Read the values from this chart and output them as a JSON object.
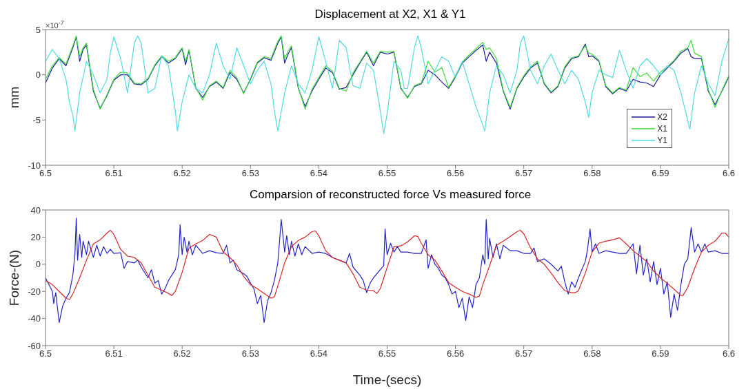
{
  "chart_data": [
    {
      "type": "line",
      "title": "Displacement at X2, X1 & Y1",
      "ylabel": "mm",
      "annotations": [
        "×10$^{-7}$"
      ],
      "xlim": [
        6.5,
        6.6
      ],
      "xticks": [
        6.5,
        6.51,
        6.52,
        6.53,
        6.54,
        6.55,
        6.56,
        6.57,
        6.58,
        6.59,
        6.6
      ],
      "ylim": [
        -10,
        5
      ],
      "yticks": [
        -10,
        -5,
        0,
        5
      ],
      "legend": "bottom right",
      "marker": "none",
      "line_style": "solid",
      "series": [
        {
          "name": "X2",
          "color": "#1c1c9c",
          "x": [
            6.5,
            6.501,
            6.502,
            6.503,
            6.504,
            6.5045,
            6.505,
            6.5055,
            6.506,
            6.507,
            6.508,
            6.509,
            6.51,
            6.511,
            6.512,
            6.513,
            6.514,
            6.515,
            6.516,
            6.517,
            6.518,
            6.519,
            6.52,
            6.5205,
            6.521,
            6.522,
            6.523,
            6.524,
            6.525,
            6.526,
            6.527,
            6.528,
            6.529,
            6.53,
            6.531,
            6.532,
            6.533,
            6.534,
            6.5345,
            6.535,
            6.5355,
            6.536,
            6.537,
            6.538,
            6.539,
            6.54,
            6.541,
            6.542,
            6.543,
            6.544,
            6.545,
            6.546,
            6.547,
            6.548,
            6.549,
            6.55,
            6.551,
            6.552,
            6.553,
            6.554,
            6.555,
            6.556,
            6.557,
            6.558,
            6.559,
            6.56,
            6.561,
            6.562,
            6.563,
            6.564,
            6.5645,
            6.565,
            6.566,
            6.567,
            6.568,
            6.569,
            6.57,
            6.571,
            6.572,
            6.573,
            6.574,
            6.575,
            6.576,
            6.577,
            6.578,
            6.579,
            6.5795,
            6.58,
            6.581,
            6.582,
            6.583,
            6.584,
            6.585,
            6.586,
            6.587,
            6.588,
            6.589,
            6.59,
            6.591,
            6.592,
            6.593,
            6.594,
            6.5945,
            6.595,
            6.596,
            6.597,
            6.598,
            6.599,
            6.6
          ],
          "values": [
            -0.9,
            0.75,
            1.8,
            1.0,
            3.0,
            4.2,
            1.5,
            2.8,
            3.3,
            -1.8,
            -3.7,
            -2.3,
            -0.6,
            0,
            0,
            -1.0,
            -1.1,
            -0.5,
            1.0,
            2.0,
            1.3,
            1.8,
            2.9,
            1.1,
            2.7,
            -1.5,
            -2.5,
            -1.3,
            -0.8,
            -1.5,
            0.25,
            -0.5,
            -2.0,
            -0.5,
            1.3,
            1.9,
            1.6,
            3.5,
            4.2,
            1.3,
            2.3,
            3.0,
            -1.5,
            -3.5,
            -1.8,
            -0.5,
            0.75,
            0.25,
            -1.6,
            -1.4,
            0,
            1.3,
            2.5,
            1.0,
            2.5,
            2.3,
            2.5,
            -1.5,
            -2.5,
            -1.3,
            -1.0,
            0.5,
            0,
            -0.8,
            -1.5,
            -0.25,
            1.3,
            2.0,
            2.7,
            3.3,
            1.5,
            2.5,
            1.3,
            -1.8,
            -3.8,
            -1.5,
            -0.25,
            0.75,
            1.3,
            -1.0,
            -2.0,
            -1.3,
            0.75,
            1.8,
            2.0,
            3.4,
            2.0,
            2.1,
            1.5,
            -1.3,
            -2.1,
            -1.5,
            -1.8,
            -0.5,
            -0.8,
            -0.9,
            -1.3,
            0,
            0.75,
            1.5,
            2.4,
            2.9,
            2.0,
            1.8,
            1.8,
            -1.8,
            -3.3,
            -1.8,
            -0.25
          ]
        },
        {
          "name": "X1",
          "color": "#3ddc3d",
          "x": [
            6.5,
            6.501,
            6.502,
            6.503,
            6.504,
            6.5045,
            6.505,
            6.5055,
            6.506,
            6.507,
            6.508,
            6.509,
            6.51,
            6.511,
            6.512,
            6.513,
            6.514,
            6.515,
            6.516,
            6.517,
            6.518,
            6.519,
            6.52,
            6.5205,
            6.521,
            6.522,
            6.523,
            6.524,
            6.525,
            6.526,
            6.527,
            6.528,
            6.529,
            6.53,
            6.531,
            6.532,
            6.533,
            6.534,
            6.5345,
            6.535,
            6.5355,
            6.536,
            6.537,
            6.538,
            6.539,
            6.54,
            6.541,
            6.542,
            6.543,
            6.544,
            6.545,
            6.546,
            6.547,
            6.548,
            6.549,
            6.55,
            6.551,
            6.552,
            6.553,
            6.554,
            6.555,
            6.556,
            6.557,
            6.558,
            6.559,
            6.56,
            6.561,
            6.562,
            6.563,
            6.564,
            6.5645,
            6.565,
            6.566,
            6.567,
            6.568,
            6.569,
            6.57,
            6.571,
            6.572,
            6.573,
            6.574,
            6.575,
            6.576,
            6.577,
            6.578,
            6.579,
            6.5795,
            6.58,
            6.581,
            6.582,
            6.583,
            6.584,
            6.585,
            6.586,
            6.587,
            6.588,
            6.589,
            6.59,
            6.591,
            6.592,
            6.593,
            6.594,
            6.5945,
            6.595,
            6.596,
            6.597,
            6.598,
            6.599,
            6.6
          ],
          "values": [
            -0.5,
            1.0,
            1.9,
            1.2,
            3.2,
            4.3,
            2.0,
            3.0,
            3.5,
            -1.6,
            -3.8,
            -2.2,
            -0.5,
            0.3,
            0.2,
            -0.9,
            -1.0,
            -0.4,
            1.1,
            2.1,
            1.5,
            1.9,
            3.0,
            1.5,
            2.8,
            -1.4,
            -2.8,
            -1.2,
            -0.7,
            -1.4,
            0.5,
            -0.3,
            -2.1,
            -0.4,
            1.4,
            2.0,
            1.8,
            3.7,
            4.3,
            1.8,
            2.6,
            3.2,
            -1.4,
            -3.8,
            -1.6,
            -0.3,
            1.0,
            0.4,
            -1.5,
            -1.8,
            0.2,
            1.4,
            2.6,
            1.3,
            2.6,
            2.5,
            2.6,
            -1.4,
            -2.6,
            -1.2,
            -0.9,
            1.5,
            0.3,
            0.8,
            -1.4,
            -0.1,
            1.4,
            2.2,
            2.9,
            3.6,
            2.8,
            3.0,
            1.8,
            -1.7,
            -3.6,
            -1.4,
            -0.1,
            0.9,
            1.5,
            -0.9,
            -1.9,
            -1.2,
            0.9,
            1.9,
            2.1,
            3.2,
            2.4,
            2.3,
            1.6,
            -1.2,
            -2.0,
            -1.4,
            -1.7,
            0.8,
            -0.2,
            0.2,
            -0.7,
            0.3,
            0.9,
            1.6,
            2.6,
            3.0,
            3.8,
            2.4,
            2.0,
            -1.6,
            -3.6,
            -1.7,
            -0.1
          ]
        },
        {
          "name": "Y1",
          "color": "#4fdbe3",
          "x": [
            6.5,
            6.501,
            6.502,
            6.503,
            6.5035,
            6.504,
            6.5043,
            6.505,
            6.506,
            6.507,
            6.508,
            6.509,
            6.5095,
            6.51,
            6.511,
            6.512,
            6.513,
            6.5135,
            6.514,
            6.515,
            6.516,
            6.517,
            6.518,
            6.519,
            6.5193,
            6.52,
            6.521,
            6.522,
            6.523,
            6.524,
            6.525,
            6.526,
            6.527,
            6.528,
            6.529,
            6.53,
            6.531,
            6.532,
            6.533,
            6.5335,
            6.534,
            6.535,
            6.536,
            6.537,
            6.538,
            6.539,
            6.54,
            6.541,
            6.542,
            6.543,
            6.544,
            6.545,
            6.546,
            6.547,
            6.548,
            6.549,
            6.5495,
            6.55,
            6.551,
            6.552,
            6.5525,
            6.553,
            6.554,
            6.5545,
            6.555,
            6.556,
            6.557,
            6.558,
            6.559,
            6.56,
            6.561,
            6.562,
            6.563,
            6.5643,
            6.565,
            6.566,
            6.567,
            6.568,
            6.569,
            6.5695,
            6.57,
            6.571,
            6.572,
            6.573,
            6.574,
            6.575,
            6.576,
            6.577,
            6.578,
            6.579,
            6.5795,
            6.58,
            6.581,
            6.582,
            6.583,
            6.584,
            6.585,
            6.586,
            6.587,
            6.588,
            6.589,
            6.59,
            6.591,
            6.592,
            6.593,
            6.5943,
            6.595,
            6.596,
            6.597,
            6.598,
            6.599,
            6.6
          ],
          "values": [
            1.5,
            2.8,
            1.8,
            -0.5,
            -3,
            -4.5,
            -6.2,
            -2,
            1.5,
            0,
            -2,
            -0.5,
            2.5,
            4.2,
            1.8,
            -2,
            3.5,
            4.3,
            3.5,
            -2,
            -1.5,
            2.1,
            1,
            -4,
            -6.2,
            -3,
            0,
            -1.5,
            -2,
            0,
            3.5,
            1,
            -0.5,
            3,
            1,
            -1,
            0.5,
            1.5,
            -1,
            -4,
            -6.2,
            -2,
            1,
            -1,
            -2,
            0.5,
            4.2,
            1.5,
            -1.5,
            3.8,
            3,
            -1.2,
            -1.5,
            1.3,
            0.5,
            -4,
            -6.5,
            -4.3,
            1.5,
            0.5,
            -1.5,
            -1.5,
            3,
            4.3,
            3,
            -1,
            0.5,
            2,
            1.5,
            -0.3,
            1.5,
            -1,
            -3.5,
            -6.2,
            -2,
            1,
            0,
            -2,
            0.5,
            3.5,
            4.3,
            0.5,
            -1,
            1,
            2.3,
            0.5,
            -1,
            0.5,
            -0.5,
            -3,
            -4.7,
            -2,
            0.5,
            0,
            -0.3,
            2.7,
            0.5,
            -1.5,
            1,
            1.8,
            1,
            0,
            1,
            0.5,
            -2,
            -6,
            -2,
            1,
            -1,
            -2.3,
            1.5,
            4
          ]
        }
      ]
    },
    {
      "type": "line",
      "title": "Comparsion of reconstructed force Vs measured force",
      "xlabel": "Time-(secs)",
      "ylabel": "Force-(N)",
      "xlim": [
        6.5,
        6.6
      ],
      "xticks": [
        6.5,
        6.51,
        6.52,
        6.53,
        6.54,
        6.55,
        6.56,
        6.57,
        6.58,
        6.59,
        6.6
      ],
      "ylim": [
        -60,
        40
      ],
      "yticks": [
        -60,
        -40,
        -20,
        0,
        20,
        40
      ],
      "marker": "none",
      "line_style": "solid",
      "series": [
        {
          "color": "#2323c8",
          "x": [
            6.5,
            6.501,
            6.5012,
            6.5015,
            6.502,
            6.5025,
            6.503,
            6.5035,
            6.504,
            6.5043,
            6.5045,
            6.5047,
            6.505,
            6.5053,
            6.5055,
            6.506,
            6.5063,
            6.507,
            6.5075,
            6.508,
            6.5085,
            6.509,
            6.5095,
            6.51,
            6.511,
            6.5115,
            6.512,
            6.513,
            6.5135,
            6.514,
            6.515,
            6.5155,
            6.516,
            6.5165,
            6.517,
            6.5175,
            6.518,
            6.519,
            6.5195,
            6.5197,
            6.52,
            6.5203,
            6.5207,
            6.521,
            6.5215,
            6.522,
            6.523,
            6.524,
            6.525,
            6.526,
            6.5265,
            6.527,
            6.5275,
            6.528,
            6.529,
            6.5295,
            6.53,
            6.5305,
            6.531,
            6.5315,
            6.532,
            6.5325,
            6.533,
            6.5335,
            6.534,
            6.5345,
            6.535,
            6.5353,
            6.5357,
            6.536,
            6.5365,
            6.537,
            6.5375,
            6.538,
            6.539,
            6.54,
            6.541,
            6.542,
            6.543,
            6.544,
            6.5445,
            6.545,
            6.546,
            6.5465,
            6.547,
            6.5475,
            6.548,
            6.549,
            6.5495,
            6.5497,
            6.55,
            6.5505,
            6.551,
            6.5515,
            6.552,
            6.553,
            6.554,
            6.555,
            6.5557,
            6.556,
            6.5565,
            6.557,
            6.5575,
            6.558,
            6.5585,
            6.559,
            6.5595,
            6.56,
            6.5605,
            6.561,
            6.5615,
            6.562,
            6.5625,
            6.563,
            6.5635,
            6.564,
            6.5643,
            6.5645,
            6.5648,
            6.565,
            6.5655,
            6.566,
            6.5665,
            6.567,
            6.568,
            6.569,
            6.57,
            6.571,
            6.5715,
            6.572,
            6.573,
            6.574,
            6.575,
            6.5755,
            6.576,
            6.5765,
            6.577,
            6.5775,
            6.578,
            6.579,
            6.5793,
            6.5797,
            6.58,
            6.5805,
            6.581,
            6.582,
            6.583,
            6.584,
            6.585,
            6.586,
            6.5865,
            6.587,
            6.5875,
            6.588,
            6.5885,
            6.589,
            6.5895,
            6.59,
            6.5905,
            6.591,
            6.5915,
            6.592,
            6.5925,
            6.593,
            6.5935,
            6.594,
            6.5945,
            6.595,
            6.5955,
            6.596,
            6.5965,
            6.597,
            6.598,
            6.599,
            6.6
          ],
          "values": [
            -10,
            -20,
            -29,
            -21,
            -43,
            -31,
            -25,
            -21,
            -8,
            7,
            34,
            3,
            22,
            5,
            17,
            7,
            17,
            5,
            14,
            6,
            13,
            8,
            11,
            8,
            8.5,
            -3,
            2,
            1,
            3,
            -2,
            -10,
            -4,
            -14,
            -12,
            -22,
            -18,
            -12,
            -4,
            7,
            29,
            7,
            20,
            9,
            17,
            7,
            14,
            8,
            10,
            8.5,
            8,
            14,
            1,
            3,
            -4,
            -7,
            -9,
            -14,
            -18,
            -29,
            -23,
            -43,
            -27,
            -21,
            -12,
            1,
            33,
            9,
            21,
            7,
            17,
            6,
            15,
            7,
            13,
            8,
            9,
            8,
            5,
            3,
            1,
            8,
            -2,
            -8,
            -12,
            -21,
            -14,
            -10,
            -4,
            -1,
            26,
            7,
            15.5,
            9,
            13,
            9,
            9,
            8,
            8,
            18,
            -3,
            7,
            0,
            -3,
            -8,
            -10,
            -15,
            -22,
            -20,
            -32,
            -25,
            -41.5,
            -24,
            -32,
            -15,
            -10,
            7,
            0,
            33,
            4,
            19,
            5,
            15,
            4,
            14,
            10,
            10,
            8,
            8,
            12,
            2,
            4,
            0,
            -5,
            -1.5,
            -13,
            -22,
            -13,
            -17,
            -10,
            2,
            10,
            26,
            9,
            15,
            8,
            10,
            9,
            8,
            8,
            15,
            -7,
            14,
            -8,
            4,
            -13,
            2,
            -15,
            -3,
            -22,
            -13,
            -39,
            -22,
            -34,
            -15,
            0,
            4,
            27,
            9,
            15,
            9,
            15,
            9,
            10,
            8,
            8
          ]
        },
        {
          "color": "#d42525",
          "x": [
            6.5,
            6.501,
            6.502,
            6.503,
            6.5035,
            6.504,
            6.505,
            6.506,
            6.507,
            6.508,
            6.509,
            6.5095,
            6.51,
            6.511,
            6.512,
            6.513,
            6.514,
            6.515,
            6.516,
            6.517,
            6.518,
            6.5185,
            6.519,
            6.52,
            6.521,
            6.522,
            6.523,
            6.524,
            6.525,
            6.526,
            6.527,
            6.528,
            6.529,
            6.53,
            6.531,
            6.532,
            6.533,
            6.5335,
            6.534,
            6.535,
            6.536,
            6.537,
            6.538,
            6.539,
            6.5395,
            6.54,
            6.541,
            6.542,
            6.543,
            6.544,
            6.545,
            6.546,
            6.547,
            6.548,
            6.5485,
            6.549,
            6.55,
            6.551,
            6.552,
            6.553,
            6.554,
            6.5545,
            6.555,
            6.556,
            6.557,
            6.558,
            6.559,
            6.56,
            6.561,
            6.562,
            6.563,
            6.5635,
            6.564,
            6.565,
            6.566,
            6.567,
            6.568,
            6.569,
            6.5695,
            6.57,
            6.571,
            6.572,
            6.573,
            6.574,
            6.575,
            6.576,
            6.577,
            6.5775,
            6.578,
            6.579,
            6.58,
            6.581,
            6.582,
            6.583,
            6.584,
            6.585,
            6.586,
            6.587,
            6.588,
            6.589,
            6.59,
            6.591,
            6.592,
            6.593,
            6.5933,
            6.594,
            6.595,
            6.596,
            6.597,
            6.598,
            6.599,
            6.5995,
            6.6
          ],
          "values": [
            -12,
            -15,
            -20,
            -25,
            -26,
            -22,
            -10,
            3,
            15,
            18,
            23,
            25,
            22,
            11,
            6,
            5,
            1,
            -8,
            -17,
            -19,
            -21.5,
            -23,
            -20,
            -6,
            12,
            15,
            17.5,
            22,
            20,
            9,
            5,
            -0.5,
            -9,
            -15,
            -18,
            -21.5,
            -25,
            -24,
            -16,
            1,
            13,
            17.5,
            20,
            24,
            24.5,
            21,
            10,
            5,
            3,
            1,
            -7,
            -17,
            -19,
            -19.5,
            -21.5,
            -18,
            -2.5,
            13,
            13.5,
            16.5,
            21,
            20.5,
            15.5,
            7,
            3,
            -5,
            -13.5,
            -17,
            -20,
            -22,
            -24.5,
            -23.5,
            -15,
            -1,
            14,
            17,
            20.5,
            24,
            25,
            22.5,
            12,
            4,
            0,
            -6.5,
            -13.5,
            -19.5,
            -21,
            -21,
            -19.5,
            -6.5,
            9,
            15.5,
            17,
            18,
            19.5,
            15,
            10,
            6,
            2,
            -5,
            -10,
            -14,
            -18.5,
            -23,
            -23,
            -17,
            -3,
            9,
            14,
            17,
            23,
            23,
            20
          ]
        }
      ]
    }
  ]
}
